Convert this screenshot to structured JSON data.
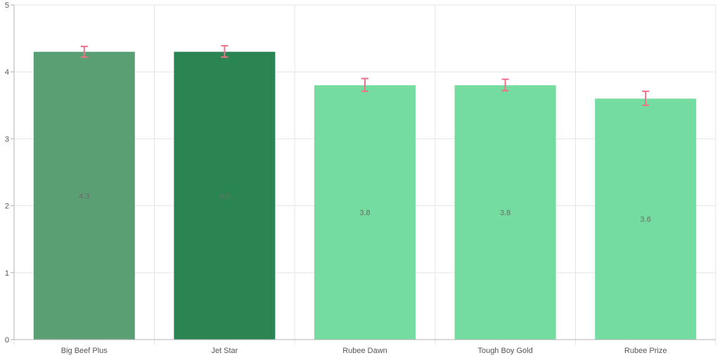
{
  "chart_data": {
    "type": "bar",
    "categories": [
      "Big Beef Plus",
      "Jet Star",
      "Rubee Dawn",
      "Tough Boy Gold",
      "Rubee Prize"
    ],
    "values": [
      4.3,
      4.3,
      3.8,
      3.8,
      3.6
    ],
    "data_labels": [
      "4.3",
      "4.3",
      "3.8",
      "3.8",
      "3.6"
    ],
    "error_low": [
      4.22,
      4.22,
      3.71,
      3.72,
      3.5
    ],
    "error_high": [
      4.38,
      4.39,
      3.9,
      3.89,
      3.71
    ],
    "bar_colors": [
      "#5a9e74",
      "#2b8552",
      "#75dca0",
      "#75dca0",
      "#75dca0"
    ],
    "error_color": "#f0718a",
    "title": "",
    "xlabel": "",
    "ylabel": "",
    "ylim": [
      0,
      5
    ],
    "yticks": [
      "0",
      "1",
      "2",
      "3",
      "4",
      "5"
    ],
    "grid": true,
    "legend": "none"
  }
}
